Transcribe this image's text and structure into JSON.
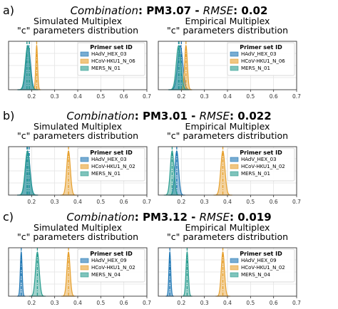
{
  "sections": [
    {
      "letter": "a)",
      "title_label": "Combination",
      "title_sep": ": ",
      "combination": "PM3.07",
      "dash": " - ",
      "metric_label": "RMSE",
      "rmse": "0.02"
    },
    {
      "letter": "b)",
      "title_label": "Combination",
      "title_sep": ": ",
      "combination": "PM3.01",
      "dash": " - ",
      "metric_label": "RMSE",
      "rmse": "0.022"
    },
    {
      "letter": "c)",
      "title_label": "Combination",
      "title_sep": ": ",
      "combination": "PM3.12",
      "dash": " - ",
      "metric_label": "RMSE",
      "rmse": "0.019"
    }
  ],
  "colors": [
    "#1f77b4",
    "#e6a02e",
    "#2a9d8f"
  ],
  "chart_data": [
    {
      "type": "area",
      "section": 0,
      "panel": "left",
      "title": [
        "Simulated Multiplex",
        "\"c\" parameters distribution"
      ],
      "xlim": [
        0.1,
        0.7
      ],
      "xticks": [
        "0.2",
        "0.3",
        "0.4",
        "0.5",
        "0.6",
        "0.7"
      ],
      "grid": true,
      "legend_title": "Primer set ID",
      "legend_position": "top-right",
      "series": [
        {
          "name": "HAdV_HEX_03",
          "mean": 0.185,
          "sd": 0.01,
          "vlines": [
            0.18,
            0.19
          ]
        },
        {
          "name": "HCoV-HKU1_N_06",
          "mean": 0.222,
          "sd": 0.004,
          "vlines": [
            0.222
          ]
        },
        {
          "name": "MERS_N_01",
          "mean": 0.183,
          "sd": 0.01,
          "vlines": [
            0.18,
            0.19
          ]
        }
      ]
    },
    {
      "type": "area",
      "section": 0,
      "panel": "right",
      "title": [
        "Empirical Multiplex",
        "\"c\" parameters distribution"
      ],
      "xlim": [
        0.1,
        0.7
      ],
      "xticks": [
        "0.2",
        "0.3",
        "0.4",
        "0.5",
        "0.6",
        "0.7"
      ],
      "grid": true,
      "legend_title": "Primer set ID",
      "legend_position": "top-right",
      "series": [
        {
          "name": "HAdV_HEX_03",
          "mean": 0.195,
          "sd": 0.011,
          "vlines": [
            0.188,
            0.2
          ]
        },
        {
          "name": "HCoV-HKU1_N_06",
          "mean": 0.22,
          "sd": 0.006,
          "vlines": [
            0.22
          ]
        },
        {
          "name": "MERS_N_01",
          "mean": 0.188,
          "sd": 0.01,
          "vlines": [
            0.19
          ]
        }
      ]
    },
    {
      "type": "area",
      "section": 1,
      "panel": "left",
      "title": [
        "Simulated Multiplex",
        "\"c\" parameters distribution"
      ],
      "xlim": [
        0.1,
        0.7
      ],
      "xticks": [
        "0.2",
        "0.3",
        "0.4",
        "0.5",
        "0.6",
        "0.7"
      ],
      "grid": true,
      "legend_title": "Primer set ID",
      "legend_position": "top-right",
      "series": [
        {
          "name": "HAdV_HEX_03",
          "mean": 0.183,
          "sd": 0.01,
          "vlines": [
            0.18,
            0.19
          ]
        },
        {
          "name": "HCoV-HKU1_N_02",
          "mean": 0.36,
          "sd": 0.008,
          "vlines": [
            0.36
          ]
        },
        {
          "name": "MERS_N_01",
          "mean": 0.182,
          "sd": 0.01,
          "vlines": [
            0.183
          ]
        }
      ]
    },
    {
      "type": "area",
      "section": 1,
      "panel": "right",
      "title": [
        "Empirical Multiplex",
        "\"c\" parameters distribution"
      ],
      "xlim": [
        0.1,
        0.7
      ],
      "xticks": [
        "0.2",
        "0.3",
        "0.4",
        "0.5",
        "0.6",
        "0.7"
      ],
      "grid": true,
      "legend_title": "Primer set ID",
      "legend_position": "top-right",
      "series": [
        {
          "name": "HAdV_HEX_03",
          "mean": 0.18,
          "sd": 0.008,
          "vlines": [
            0.18
          ]
        },
        {
          "name": "HCoV-HKU1_N_02",
          "mean": 0.38,
          "sd": 0.009,
          "vlines": [
            0.38
          ]
        },
        {
          "name": "MERS_N_01",
          "mean": 0.16,
          "sd": 0.008,
          "vlines": [
            0.16
          ]
        }
      ]
    },
    {
      "type": "area",
      "section": 2,
      "panel": "left",
      "title": [
        "Simulated Multiplex",
        "\"c\" parameters distribution"
      ],
      "xlim": [
        0.1,
        0.7
      ],
      "xticks": [
        "0.2",
        "0.3",
        "0.4",
        "0.5",
        "0.6",
        "0.7"
      ],
      "grid": true,
      "legend_title": "Primer set ID",
      "legend_position": "top-right",
      "series": [
        {
          "name": "HAdV_HEX_09",
          "mean": 0.155,
          "sd": 0.004,
          "vlines": [
            0.155
          ]
        },
        {
          "name": "HCoV-HKU1_N_02",
          "mean": 0.36,
          "sd": 0.007,
          "vlines": [
            0.36
          ]
        },
        {
          "name": "MERS_N_04",
          "mean": 0.225,
          "sd": 0.008,
          "vlines": [
            0.225
          ]
        }
      ]
    },
    {
      "type": "area",
      "section": 2,
      "panel": "right",
      "title": [
        "Empirical Multiplex",
        "\"c\" parameters distribution"
      ],
      "xlim": [
        0.1,
        0.7
      ],
      "xticks": [
        "0.2",
        "0.3",
        "0.4",
        "0.5",
        "0.6",
        "0.7"
      ],
      "grid": true,
      "legend_title": "Primer set ID",
      "legend_position": "top-right",
      "series": [
        {
          "name": "HAdV_HEX_09",
          "mean": 0.15,
          "sd": 0.004,
          "vlines": [
            0.15
          ]
        },
        {
          "name": "HCoV-HKU1_N_02",
          "mean": 0.38,
          "sd": 0.007,
          "vlines": [
            0.38
          ]
        },
        {
          "name": "MERS_N_04",
          "mean": 0.225,
          "sd": 0.005,
          "vlines": [
            0.225
          ]
        }
      ]
    }
  ]
}
